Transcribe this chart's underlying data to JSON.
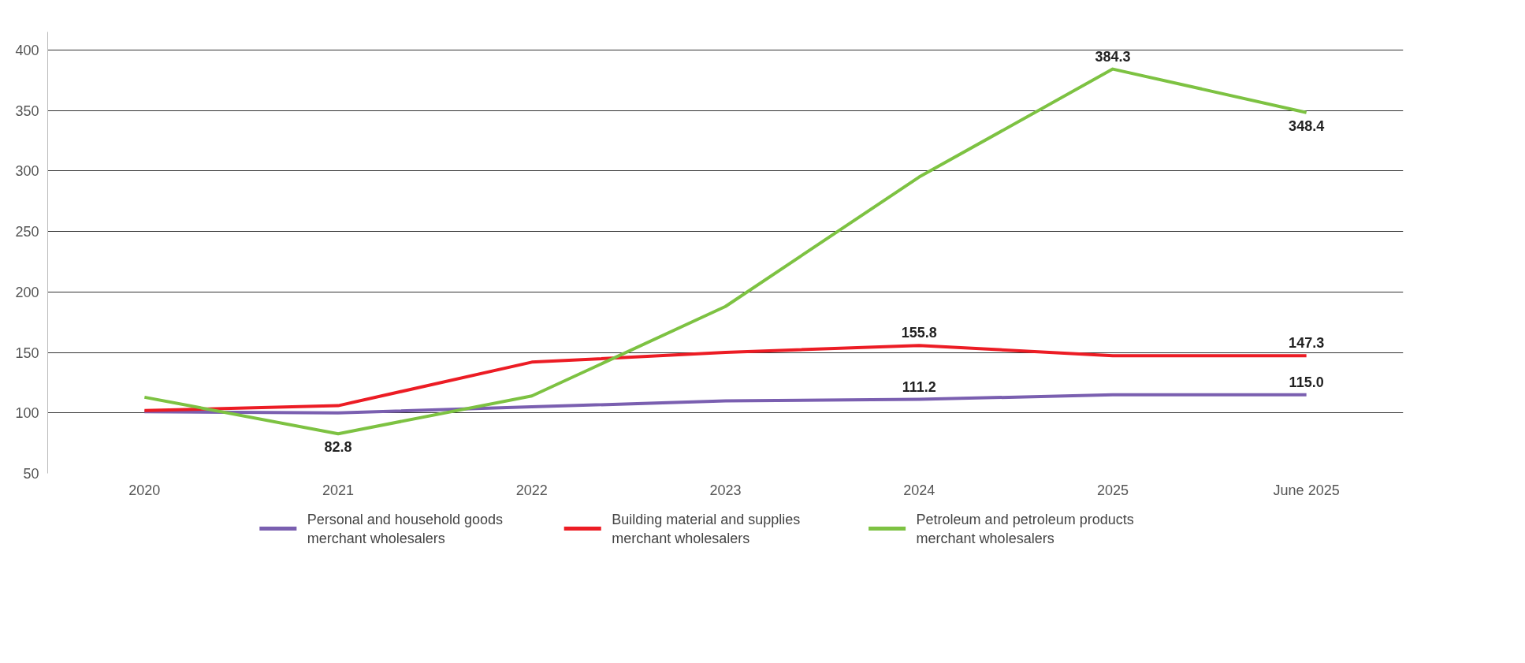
{
  "chart_data": {
    "type": "line",
    "categories": [
      "2020",
      "2021",
      "2022",
      "2023",
      "2024",
      "2025",
      "June 2025"
    ],
    "series": [
      {
        "name": "Personal and household goods merchant wholesalers",
        "color": "#7a5fb0",
        "values": [
          101,
          100,
          105,
          110,
          111.2,
          115.0,
          115.0
        ],
        "value_labels": [
          null,
          null,
          null,
          null,
          "111.2",
          null,
          "115.0"
        ]
      },
      {
        "name": "Building material and supplies merchant wholesalers",
        "color": "#ec1c24",
        "values": [
          102,
          106,
          142,
          150,
          155.8,
          147.3,
          147.3
        ],
        "value_labels": [
          null,
          null,
          null,
          null,
          "155.8",
          null,
          "147.3"
        ]
      },
      {
        "name": "Petroleum and petroleum products merchant wholesalers",
        "color": "#7dc242",
        "values": [
          113,
          82.8,
          114,
          188,
          295,
          384.3,
          348.4
        ],
        "value_labels": [
          null,
          "82.8",
          null,
          null,
          null,
          "384.3",
          "348.4"
        ]
      }
    ],
    "ylim": [
      50,
      415
    ],
    "yticks": [
      50,
      100,
      150,
      200,
      250,
      300,
      350,
      400
    ],
    "grid": "y",
    "legend": "bottom",
    "marker": "none",
    "line_style": "solid"
  }
}
